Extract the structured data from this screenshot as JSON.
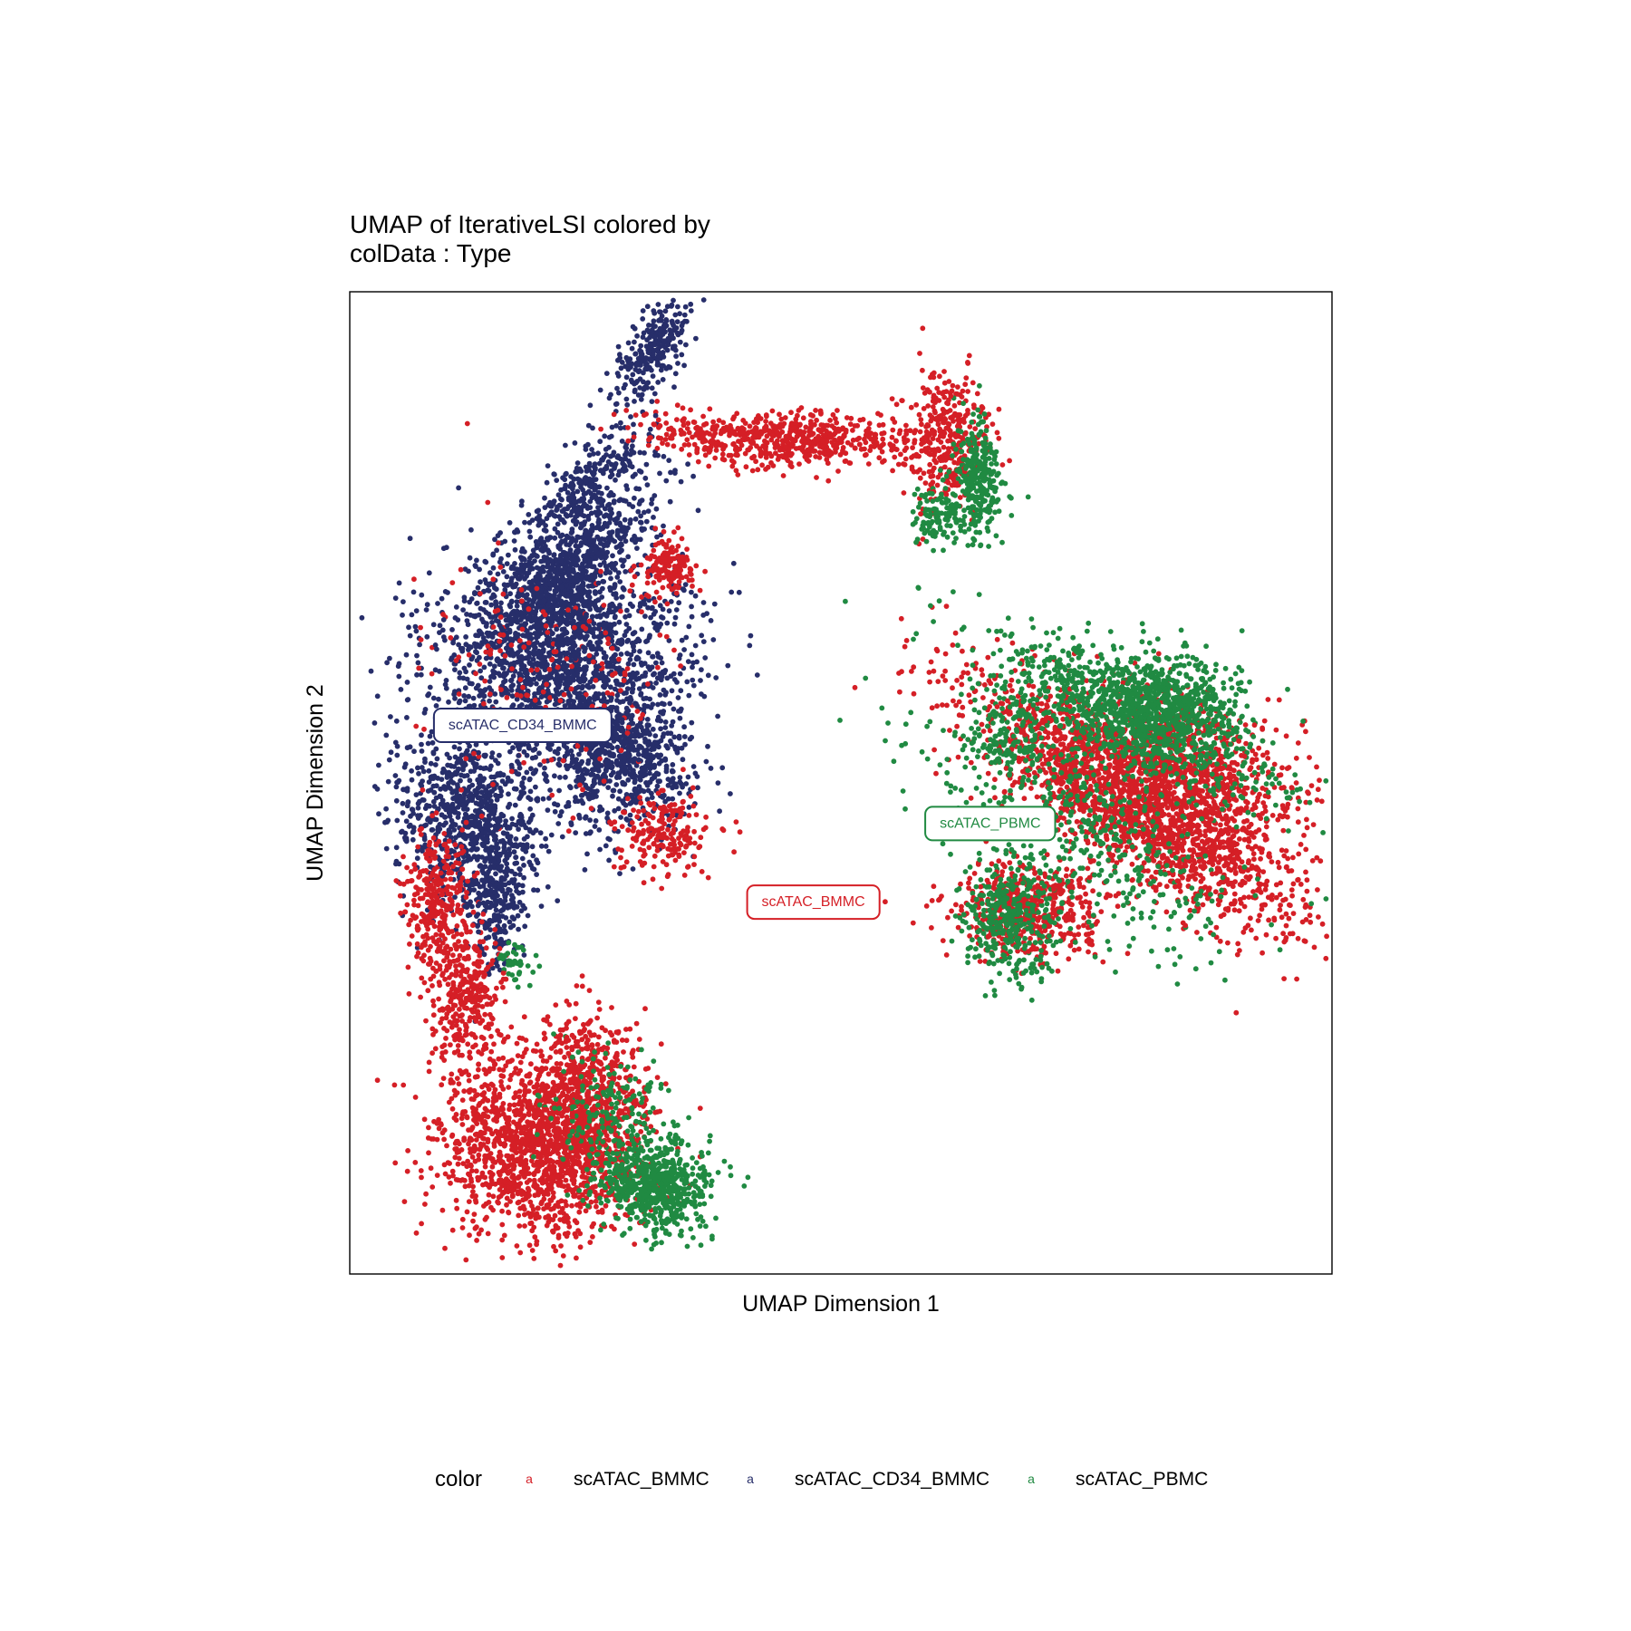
{
  "chart_data": {
    "type": "scatter",
    "title": "UMAP of IterativeLSI  colored by",
    "subtitle": "colData :  Type",
    "xlabel": "UMAP Dimension 1",
    "ylabel": "UMAP Dimension 2",
    "xlim": [
      0,
      100
    ],
    "ylim": [
      0,
      100
    ],
    "grid": false,
    "legend": {
      "title": "color",
      "placement": "bottom",
      "key_glyph": "a",
      "entries": [
        "scATAC_BMMC",
        "scATAC_CD34_BMMC",
        "scATAC_PBMC"
      ]
    },
    "colors": {
      "scATAC_BMMC": "#d51f26",
      "scATAC_CD34_BMMC": "#272e6a",
      "scATAC_PBMC": "#208a42"
    },
    "series": [
      {
        "name": "scATAC_CD34_BMMC",
        "clusters": [
          {
            "cx": 31,
            "cy": 94,
            "sx": 1.3,
            "sy": 3,
            "rot": -30,
            "n": 260
          },
          {
            "cx": 24,
            "cy": 80,
            "sx": 1.6,
            "sy": 4.5,
            "rot": -40,
            "n": 320
          },
          {
            "cx": 21,
            "cy": 70,
            "sx": 2.8,
            "sy": 2.5,
            "rot": 0,
            "n": 380
          },
          {
            "cx": 25,
            "cy": 74,
            "sx": 4.8,
            "sy": 2.0,
            "rot": 45,
            "n": 320
          },
          {
            "cx": 21,
            "cy": 63,
            "sx": 6.5,
            "sy": 5.5,
            "rot": 0,
            "n": 1800
          },
          {
            "cx": 28,
            "cy": 52,
            "sx": 3.5,
            "sy": 3.5,
            "rot": 0,
            "n": 600
          },
          {
            "cx": 12,
            "cy": 47,
            "sx": 3.8,
            "sy": 4.5,
            "rot": 0,
            "n": 750
          },
          {
            "cx": 15,
            "cy": 39,
            "sx": 1.5,
            "sy": 4,
            "rot": 0,
            "n": 300
          }
        ]
      },
      {
        "name": "scATAC_BMMC",
        "clusters": [
          {
            "cx": 21,
            "cy": 62,
            "sx": 6.5,
            "sy": 6.5,
            "rot": 0,
            "n": 200
          },
          {
            "cx": 32,
            "cy": 45,
            "sx": 2.3,
            "sy": 2.0,
            "rot": 0,
            "n": 200
          },
          {
            "cx": 37,
            "cy": 85,
            "sx": 4.0,
            "sy": 1.2,
            "rot": -10,
            "n": 220
          },
          {
            "cx": 45,
            "cy": 85,
            "sx": 3.0,
            "sy": 1.4,
            "rot": -5,
            "n": 260
          },
          {
            "cx": 52,
            "cy": 85,
            "sx": 3.5,
            "sy": 1.3,
            "rot": 0,
            "n": 150
          },
          {
            "cx": 61,
            "cy": 85,
            "sx": 2.2,
            "sy": 3.3,
            "rot": 0,
            "n": 350
          },
          {
            "cx": 32.5,
            "cy": 72,
            "sx": 1.3,
            "sy": 1.3,
            "rot": 0,
            "n": 150
          },
          {
            "cx": 9,
            "cy": 38,
            "sx": 1.6,
            "sy": 3.5,
            "rot": 0,
            "n": 300
          },
          {
            "cx": 12,
            "cy": 28,
            "sx": 1.8,
            "sy": 4.0,
            "rot": 0,
            "n": 350
          },
          {
            "cx": 20,
            "cy": 13,
            "sx": 5.0,
            "sy": 4.5,
            "rot": 0,
            "n": 1700
          },
          {
            "cx": 24,
            "cy": 20,
            "sx": 2.8,
            "sy": 3.5,
            "rot": 0,
            "n": 320
          },
          {
            "cx": 80,
            "cy": 48,
            "sx": 10,
            "sy": 3.2,
            "rot": -35,
            "n": 1900
          },
          {
            "cx": 85,
            "cy": 52,
            "sx": 6,
            "sy": 3.3,
            "rot": -25,
            "n": 800
          },
          {
            "cx": 69,
            "cy": 37,
            "sx": 4,
            "sy": 2.5,
            "rot": 0,
            "n": 500
          }
        ]
      },
      {
        "name": "scATAC_PBMC",
        "clusters": [
          {
            "cx": 31,
            "cy": 9,
            "sx": 3.0,
            "sy": 2.3,
            "rot": -25,
            "n": 650
          },
          {
            "cx": 26,
            "cy": 17,
            "sx": 3.0,
            "sy": 3.0,
            "rot": 0,
            "n": 180
          },
          {
            "cx": 17,
            "cy": 32,
            "sx": 1.0,
            "sy": 1.0,
            "rot": 0,
            "n": 40
          },
          {
            "cx": 64,
            "cy": 81,
            "sx": 1.2,
            "sy": 3,
            "rot": 0,
            "n": 300
          },
          {
            "cx": 60,
            "cy": 77,
            "sx": 1.5,
            "sy": 1.4,
            "rot": 0,
            "n": 110
          },
          {
            "cx": 79,
            "cy": 57,
            "sx": 8,
            "sy": 2.5,
            "rot": -25,
            "n": 850
          },
          {
            "cx": 83,
            "cy": 58,
            "sx": 4,
            "sy": 2.5,
            "rot": 0,
            "n": 600
          },
          {
            "cx": 67,
            "cy": 36,
            "sx": 2.2,
            "sy": 3,
            "rot": 0,
            "n": 360
          },
          {
            "cx": 75,
            "cy": 45,
            "sx": 9,
            "sy": 4.5,
            "rot": -35,
            "n": 500
          },
          {
            "cx": 67,
            "cy": 55,
            "sx": 1.8,
            "sy": 1.8,
            "rot": 0,
            "n": 120
          }
        ]
      }
    ],
    "cluster_labels": [
      {
        "text": "scATAC_CD34_BMMC",
        "x": 17.6,
        "y": 56,
        "color": "#272e6a"
      },
      {
        "text": "scATAC_PBMC",
        "x": 65.2,
        "y": 46,
        "color": "#208a42"
      },
      {
        "text": "scATAC_BMMC",
        "x": 47.2,
        "y": 38,
        "color": "#d51f26"
      }
    ]
  }
}
